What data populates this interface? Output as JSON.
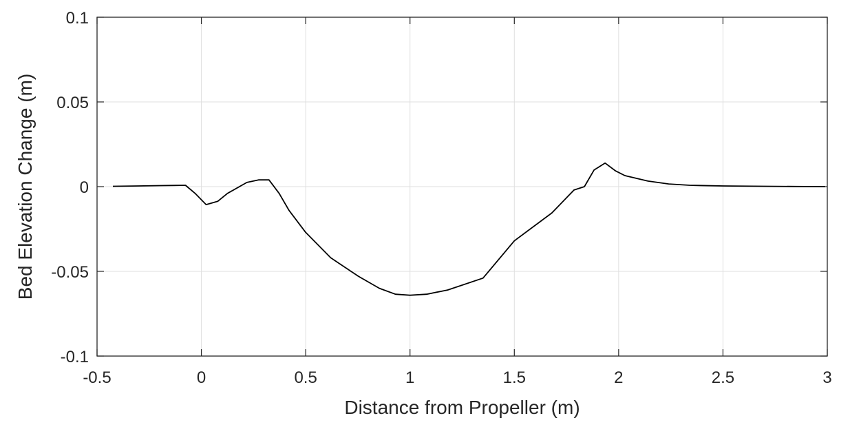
{
  "chart_data": {
    "type": "line",
    "title": "",
    "xlabel": "Distance from Propeller (m)",
    "ylabel": "Bed Elevation Change (m)",
    "xlim": [
      -0.5,
      3
    ],
    "ylim": [
      -0.1,
      0.1
    ],
    "grid": true,
    "legend": null,
    "xticks": [
      -0.5,
      0,
      0.5,
      1,
      1.5,
      2,
      2.5,
      3
    ],
    "xtick_labels": [
      "-0.5",
      "0",
      "0.5",
      "1",
      "1.5",
      "2",
      "2.5",
      "3"
    ],
    "yticks": [
      -0.1,
      -0.05,
      0,
      0.05,
      0.1
    ],
    "ytick_labels": [
      "-0.1",
      "-0.05",
      "0",
      "0.05",
      "0.1"
    ],
    "series": [
      {
        "name": "Bed elevation change",
        "color": "#000000",
        "x": [
          -0.424,
          -0.3,
          -0.2,
          -0.076,
          -0.03,
          0.023,
          0.079,
          0.125,
          0.218,
          0.274,
          0.324,
          0.373,
          0.42,
          0.5,
          0.62,
          0.754,
          0.853,
          0.93,
          1.0,
          1.08,
          1.18,
          1.35,
          1.5,
          1.68,
          1.786,
          1.836,
          1.882,
          1.935,
          1.984,
          2.03,
          2.14,
          2.24,
          2.34,
          2.5,
          2.7,
          2.85,
          2.99
        ],
        "y": [
          0.0002,
          0.0004,
          0.0006,
          0.0008,
          -0.004,
          -0.0106,
          -0.0086,
          -0.004,
          0.0025,
          0.004,
          0.004,
          -0.004,
          -0.014,
          -0.027,
          -0.042,
          -0.053,
          -0.06,
          -0.0635,
          -0.0641,
          -0.0635,
          -0.061,
          -0.054,
          -0.032,
          -0.0155,
          -0.002,
          0.0,
          0.0098,
          0.0139,
          0.0094,
          0.0065,
          0.0033,
          0.0016,
          0.0008,
          0.0004,
          0.0002,
          0.0001,
          0.0
        ]
      }
    ]
  },
  "colors": {
    "axis": "#262626",
    "grid": "#dfdfdf",
    "line": "#000000",
    "background": "#ffffff"
  }
}
